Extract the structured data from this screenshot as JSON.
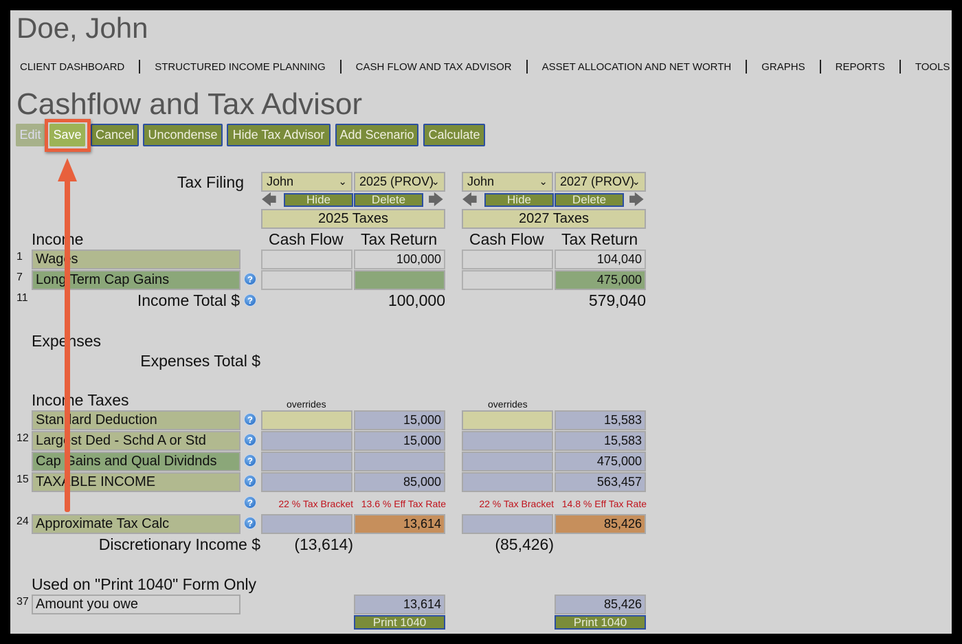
{
  "client_name": "Doe, John",
  "nav": [
    "CLIENT DASHBOARD",
    "STRUCTURED INCOME PLANNING",
    "CASH FLOW AND TAX ADVISOR",
    "ASSET ALLOCATION AND NET WORTH",
    "GRAPHS",
    "REPORTS",
    "TOOLS"
  ],
  "page_title": "Cashflow and Tax Advisor",
  "toolbar": {
    "edit": "Edit",
    "save": "Save",
    "cancel": "Cancel",
    "uncondense": "Uncondense",
    "hide_tax_advisor": "Hide Tax Advisor",
    "add_scenario": "Add Scenario",
    "calculate": "Calculate"
  },
  "tax_filing_label": "Tax Filing",
  "scenarios": [
    {
      "person": "John",
      "year": "2025 (PROV)",
      "hide": "Hide",
      "delete": "Delete",
      "header": "2025 Taxes",
      "cash_flow": "Cash Flow",
      "tax_return": "Tax Return",
      "wages": "100,000",
      "ltcg": "",
      "income_total": "100,000",
      "overrides": "overrides",
      "std_ded": "15,000",
      "largest_ded": "15,000",
      "cap_gains": "",
      "taxable": "85,000",
      "bracket": "22 % Tax Bracket",
      "eff_rate": "13.6 % Eff Tax Rate",
      "approx_tax": "13,614",
      "discretionary": "(13,614)",
      "amount_owe": "13,614",
      "print": "Print 1040"
    },
    {
      "person": "John",
      "year": "2027 (PROV)",
      "hide": "Hide",
      "delete": "Delete",
      "header": "2027 Taxes",
      "cash_flow": "Cash Flow",
      "tax_return": "Tax Return",
      "wages": "104,040",
      "ltcg": "475,000",
      "income_total": "579,040",
      "overrides": "overrides",
      "std_ded": "15,583",
      "largest_ded": "15,583",
      "cap_gains": "475,000",
      "taxable": "563,457",
      "bracket": "22 % Tax Bracket",
      "eff_rate": "14.8 % Eff Tax Rate",
      "approx_tax": "85,426",
      "discretionary": "(85,426)",
      "amount_owe": "85,426",
      "print": "Print 1040"
    }
  ],
  "sections": {
    "income": "Income",
    "expenses": "Expenses",
    "expenses_total": "Expenses Total $",
    "income_taxes": "Income Taxes",
    "print_only": "Used on \"Print 1040\" Form Only"
  },
  "rows": {
    "wages": {
      "line": "1",
      "label": "Wages"
    },
    "ltcg": {
      "line": "7",
      "label": "Long Term Cap Gains"
    },
    "income_total": {
      "line": "11",
      "label": "Income Total $"
    },
    "std_ded": {
      "label": "Standard Deduction"
    },
    "largest_ded": {
      "line": "12",
      "label": "Largest Ded - Schd A or Std"
    },
    "cap_gains": {
      "label": "Cap Gains and Qual Dividnds"
    },
    "taxable": {
      "line": "15",
      "label": "TAXABLE INCOME"
    },
    "approx_tax": {
      "line": "24",
      "label": "Approximate Tax Calc"
    },
    "discretionary": {
      "label": "Discretionary Income $"
    },
    "amount_owe": {
      "line": "37",
      "label": "Amount you owe"
    }
  },
  "help_glyph": "?",
  "colors": {
    "button": "#7a8c3a",
    "annotation": "#e8603c",
    "tax_calc": "#c68f5c",
    "override": "#aeb3c9"
  }
}
